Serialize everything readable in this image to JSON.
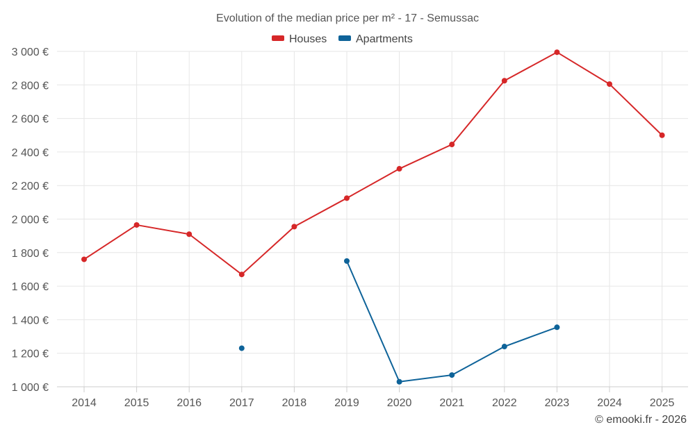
{
  "chart_data": {
    "type": "line",
    "title": "Evolution of the median price per m² - 17 - Semussac",
    "categories": [
      "2014",
      "2015",
      "2016",
      "2017",
      "2018",
      "2019",
      "2020",
      "2021",
      "2022",
      "2023",
      "2024",
      "2025"
    ],
    "series": [
      {
        "name": "Houses",
        "color": "#d62728",
        "values": [
          1760,
          1965,
          1910,
          1670,
          1955,
          2125,
          2300,
          2445,
          2825,
          2995,
          2805,
          2500
        ]
      },
      {
        "name": "Apartments",
        "color": "#0e6399",
        "values": [
          null,
          null,
          null,
          1230,
          null,
          1750,
          1030,
          1070,
          1240,
          1355,
          null,
          null
        ]
      }
    ],
    "yticks": [
      1000,
      1200,
      1400,
      1600,
      1800,
      2000,
      2200,
      2400,
      2600,
      2800,
      3000
    ],
    "ytick_labels": [
      "1 000 €",
      "1 200 €",
      "1 400 €",
      "1 600 €",
      "1 800 €",
      "2 000 €",
      "2 200 €",
      "2 400 €",
      "2 600 €",
      "2 800 €",
      "3 000 €"
    ],
    "ylim": [
      1000,
      3000
    ],
    "xlabel": "",
    "ylabel": "",
    "legend_position": "top-center",
    "grid": true
  },
  "credit": "© emooki.fr - 2026"
}
